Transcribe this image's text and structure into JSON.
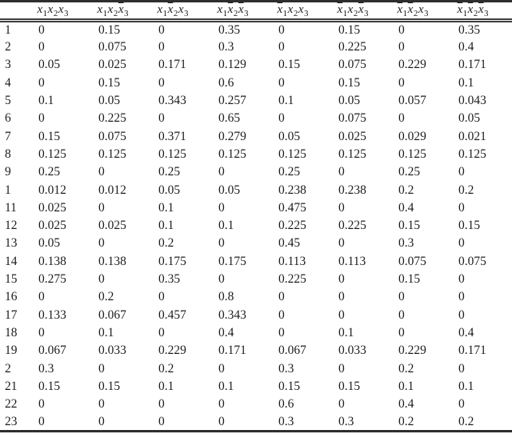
{
  "colors": {
    "rule": "#2e2e2e",
    "text": "#1c1c1c",
    "background": "#ffffff"
  },
  "table": {
    "row_label_header": "",
    "columns": [
      {
        "name": "x1x2x3",
        "terms": [
          {
            "v": "x",
            "sub": "1",
            "bar": false
          },
          {
            "v": "x",
            "sub": "2",
            "bar": false
          },
          {
            "v": "x",
            "sub": "3",
            "bar": false
          }
        ]
      },
      {
        "name": "x1x2nx3",
        "terms": [
          {
            "v": "x",
            "sub": "1",
            "bar": false
          },
          {
            "v": "x",
            "sub": "2",
            "bar": false
          },
          {
            "v": "x",
            "sub": "3",
            "bar": true
          }
        ]
      },
      {
        "name": "x1nx2x3",
        "terms": [
          {
            "v": "x",
            "sub": "1",
            "bar": false
          },
          {
            "v": "x",
            "sub": "2",
            "bar": true
          },
          {
            "v": "x",
            "sub": "3",
            "bar": false
          }
        ]
      },
      {
        "name": "x1nx2nx3",
        "terms": [
          {
            "v": "x",
            "sub": "1",
            "bar": false
          },
          {
            "v": "x",
            "sub": "2",
            "bar": true
          },
          {
            "v": "x",
            "sub": "3",
            "bar": true
          }
        ]
      },
      {
        "name": "nx1x2x3",
        "terms": [
          {
            "v": "x",
            "sub": "1",
            "bar": true
          },
          {
            "v": "x",
            "sub": "2",
            "bar": false
          },
          {
            "v": "x",
            "sub": "3",
            "bar": false
          }
        ]
      },
      {
        "name": "nx1x2nx3",
        "terms": [
          {
            "v": "x",
            "sub": "1",
            "bar": true
          },
          {
            "v": "x",
            "sub": "2",
            "bar": false
          },
          {
            "v": "x",
            "sub": "3",
            "bar": true
          }
        ]
      },
      {
        "name": "nx1nx2x3",
        "terms": [
          {
            "v": "x",
            "sub": "1",
            "bar": true
          },
          {
            "v": "x",
            "sub": "2",
            "bar": true
          },
          {
            "v": "x",
            "sub": "3",
            "bar": false
          }
        ]
      },
      {
        "name": "nx1nx2nx3",
        "terms": [
          {
            "v": "x",
            "sub": "1",
            "bar": true
          },
          {
            "v": "x",
            "sub": "2",
            "bar": true
          },
          {
            "v": "x",
            "sub": "3",
            "bar": true
          }
        ]
      }
    ],
    "rows": [
      {
        "label": "1",
        "values": [
          "0",
          "0.15",
          "0",
          "0.35",
          "0",
          "0.15",
          "0",
          "0.35"
        ]
      },
      {
        "label": "2",
        "values": [
          "0",
          "0.075",
          "0",
          "0.3",
          "0",
          "0.225",
          "0",
          "0.4"
        ]
      },
      {
        "label": "3",
        "values": [
          "0.05",
          "0.025",
          "0.171",
          "0.129",
          "0.15",
          "0.075",
          "0.229",
          "0.171"
        ]
      },
      {
        "label": "4",
        "values": [
          "0",
          "0.15",
          "0",
          "0.6",
          "0",
          "0.15",
          "0",
          "0.1"
        ]
      },
      {
        "label": "5",
        "values": [
          "0.1",
          "0.05",
          "0.343",
          "0.257",
          "0.1",
          "0.05",
          "0.057",
          "0.043"
        ]
      },
      {
        "label": "6",
        "values": [
          "0",
          "0.225",
          "0",
          "0.65",
          "0",
          "0.075",
          "0",
          "0.05"
        ]
      },
      {
        "label": "7",
        "values": [
          "0.15",
          "0.075",
          "0.371",
          "0.279",
          "0.05",
          "0.025",
          "0.029",
          "0.021"
        ]
      },
      {
        "label": "8",
        "values": [
          "0.125",
          "0.125",
          "0.125",
          "0.125",
          "0.125",
          "0.125",
          "0.125",
          "0.125"
        ]
      },
      {
        "label": "9",
        "values": [
          "0.25",
          "0",
          "0.25",
          "0",
          "0.25",
          "0",
          "0.25",
          "0"
        ]
      },
      {
        "label": "1",
        "values": [
          "0.012",
          "0.012",
          "0.05",
          "0.05",
          "0.238",
          "0.238",
          "0.2",
          "0.2"
        ]
      },
      {
        "label": "11",
        "values": [
          "0.025",
          "0",
          "0.1",
          "0",
          "0.475",
          "0",
          "0.4",
          "0"
        ]
      },
      {
        "label": "12",
        "values": [
          "0.025",
          "0.025",
          "0.1",
          "0.1",
          "0.225",
          "0.225",
          "0.15",
          "0.15"
        ]
      },
      {
        "label": "13",
        "values": [
          "0.05",
          "0",
          "0.2",
          "0",
          "0.45",
          "0",
          "0.3",
          "0"
        ]
      },
      {
        "label": "14",
        "values": [
          "0.138",
          "0.138",
          "0.175",
          "0.175",
          "0.113",
          "0.113",
          "0.075",
          "0.075"
        ]
      },
      {
        "label": "15",
        "values": [
          "0.275",
          "0",
          "0.35",
          "0",
          "0.225",
          "0",
          "0.15",
          "0"
        ]
      },
      {
        "label": "16",
        "values": [
          "0",
          "0.2",
          "0",
          "0.8",
          "0",
          "0",
          "0",
          "0"
        ]
      },
      {
        "label": "17",
        "values": [
          "0.133",
          "0.067",
          "0.457",
          "0.343",
          "0",
          "0",
          "0",
          "0"
        ]
      },
      {
        "label": "18",
        "values": [
          "0",
          "0.1",
          "0",
          "0.4",
          "0",
          "0.1",
          "0",
          "0.4"
        ]
      },
      {
        "label": "19",
        "values": [
          "0.067",
          "0.033",
          "0.229",
          "0.171",
          "0.067",
          "0.033",
          "0.229",
          "0.171"
        ]
      },
      {
        "label": "2",
        "values": [
          "0.3",
          "0",
          "0.2",
          "0",
          "0.3",
          "0",
          "0.2",
          "0"
        ]
      },
      {
        "label": "21",
        "values": [
          "0.15",
          "0.15",
          "0.1",
          "0.1",
          "0.15",
          "0.15",
          "0.1",
          "0.1"
        ]
      },
      {
        "label": "22",
        "values": [
          "0",
          "0",
          "0",
          "0",
          "0.6",
          "0",
          "0.4",
          "0"
        ]
      },
      {
        "label": "23",
        "values": [
          "0",
          "0",
          "0",
          "0",
          "0.3",
          "0.3",
          "0.2",
          "0.2"
        ]
      }
    ]
  }
}
